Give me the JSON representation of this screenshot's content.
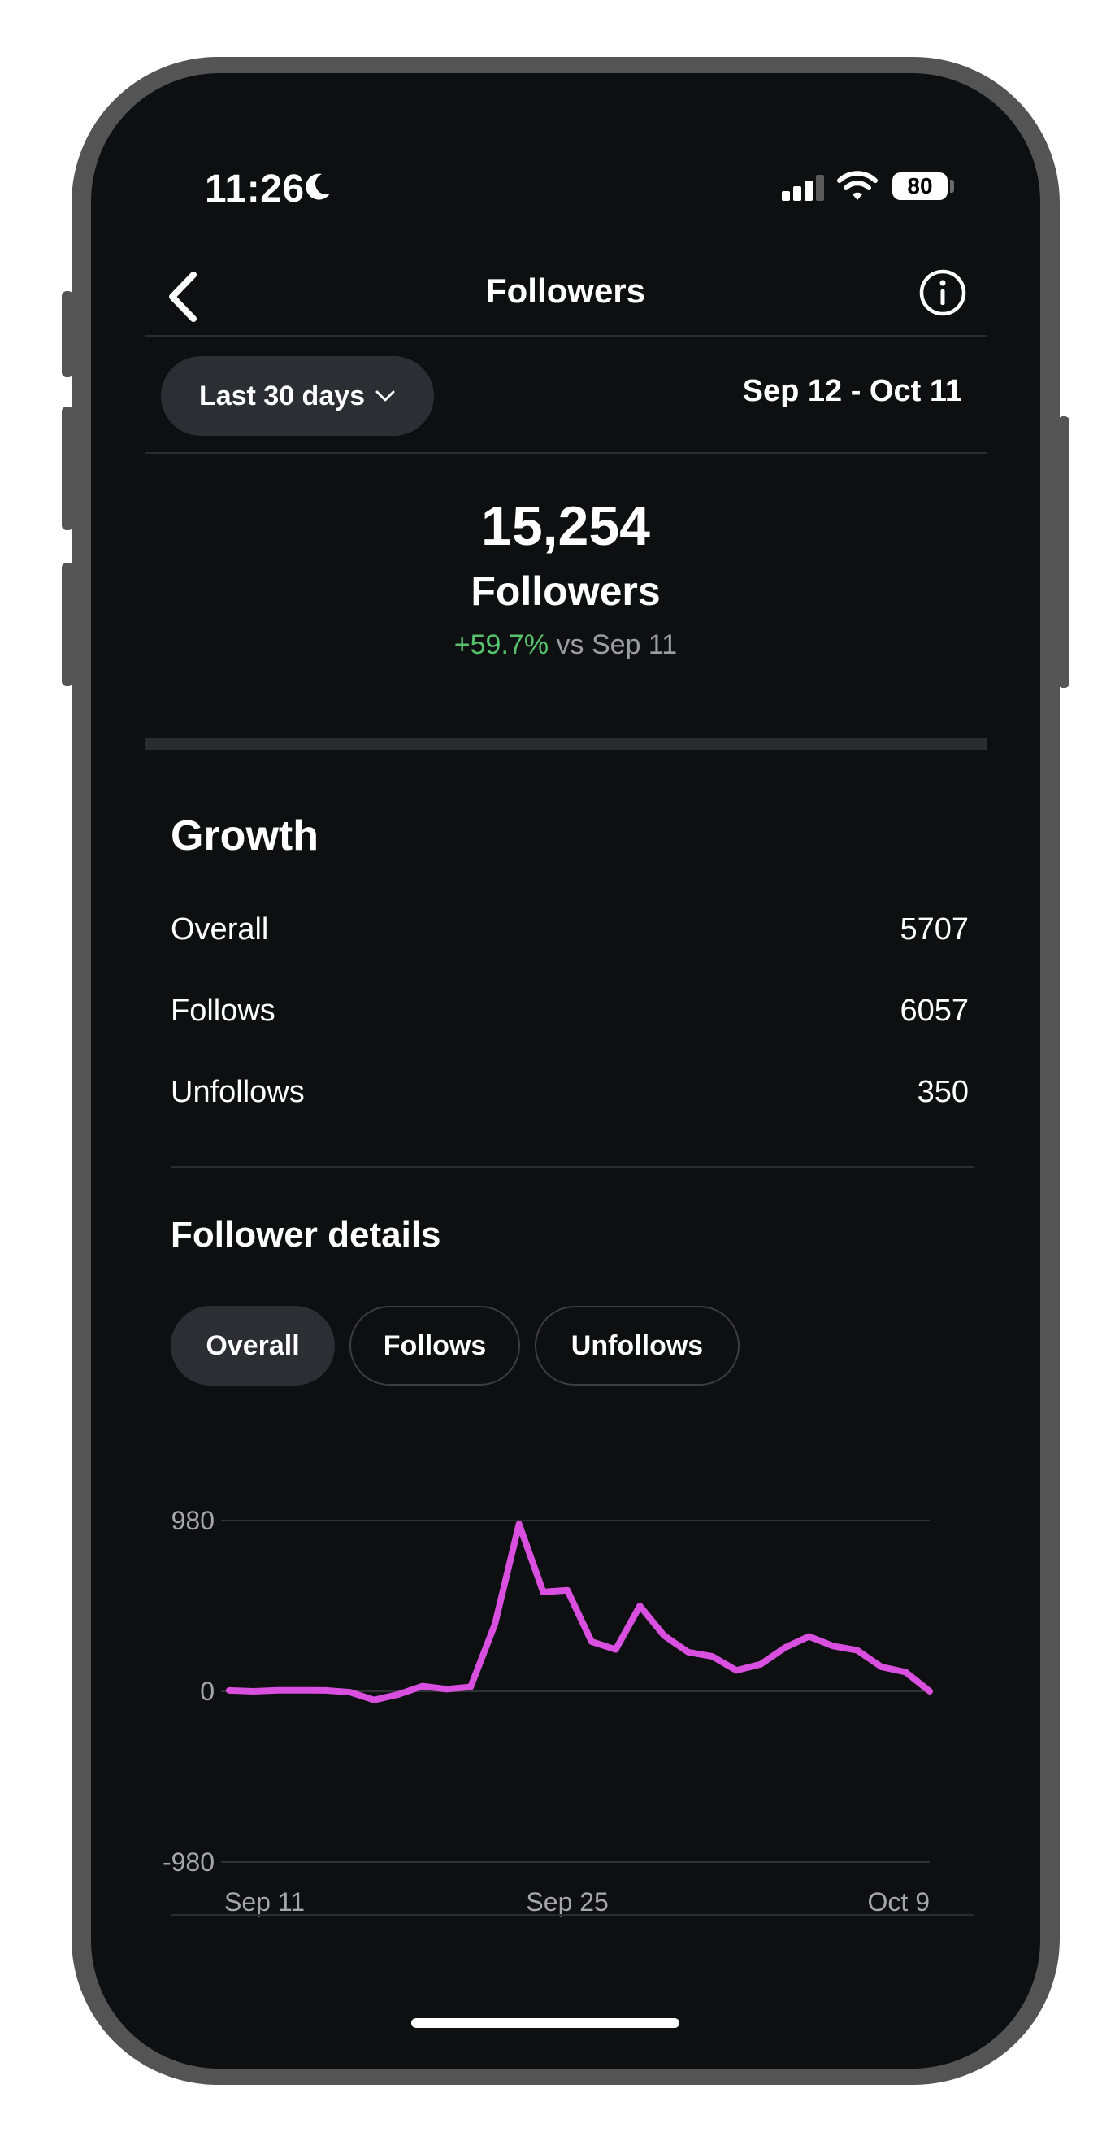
{
  "status_bar": {
    "time": "11:26",
    "battery": "80"
  },
  "nav": {
    "title": "Followers"
  },
  "range": {
    "selector_label": "Last 30 days",
    "dates": "Sep 12 - Oct 11"
  },
  "summary": {
    "total": "15,254",
    "label": "Followers",
    "change_pct": "+59.7%",
    "change_vs": "vs Sep 11"
  },
  "growth": {
    "title": "Growth",
    "rows": [
      {
        "label": "Overall",
        "value": "5707"
      },
      {
        "label": "Follows",
        "value": "6057"
      },
      {
        "label": "Unfollows",
        "value": "350"
      }
    ]
  },
  "details": {
    "title": "Follower details",
    "tabs": [
      "Overall",
      "Follows",
      "Unfollows"
    ],
    "active_tab": "Overall"
  },
  "colors": {
    "line": "#d94fe0",
    "positive": "#56c26b",
    "background": "#0e0f11"
  },
  "chart_data": {
    "type": "line",
    "x": [
      "Sep 11",
      "Sep 12",
      "Sep 13",
      "Sep 14",
      "Sep 15",
      "Sep 16",
      "Sep 17",
      "Sep 18",
      "Sep 19",
      "Sep 20",
      "Sep 21",
      "Sep 22",
      "Sep 23",
      "Sep 24",
      "Sep 25",
      "Sep 26",
      "Sep 27",
      "Sep 28",
      "Sep 29",
      "Sep 30",
      "Oct 1",
      "Oct 2",
      "Oct 3",
      "Oct 4",
      "Oct 5",
      "Oct 6",
      "Oct 7",
      "Oct 8",
      "Oct 9",
      "Oct 10"
    ],
    "y": [
      5,
      0,
      6,
      6,
      5,
      -5,
      -50,
      -18,
      30,
      12,
      25,
      385,
      960,
      570,
      580,
      285,
      240,
      490,
      320,
      225,
      200,
      120,
      155,
      250,
      315,
      260,
      235,
      140,
      110,
      0
    ],
    "x_tick_labels": [
      "Sep 11",
      "Sep 25",
      "Oct 9"
    ],
    "y_tick_labels": [
      "980",
      "0",
      "-980"
    ],
    "ylim": [
      -980,
      980
    ],
    "grid": true
  }
}
